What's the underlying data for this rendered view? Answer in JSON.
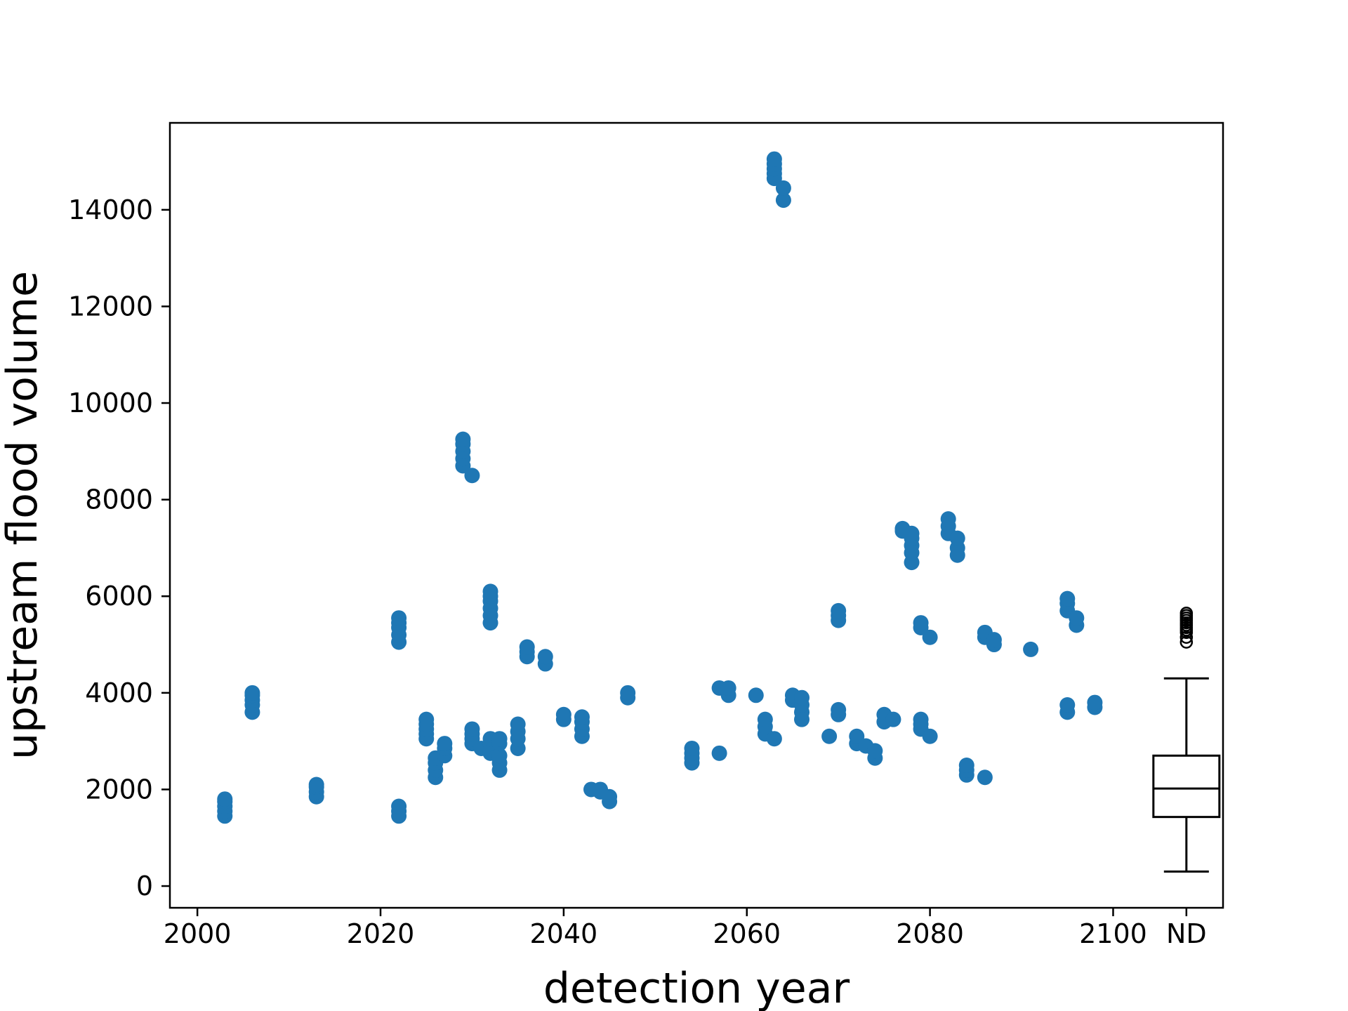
{
  "chart_data": {
    "type": "scatter",
    "title": "",
    "xlabel": "detection year",
    "ylabel": "upstream flood volume",
    "xlim": [
      1997,
      2112
    ],
    "ylim": [
      -450,
      15800
    ],
    "xticks": [
      2000,
      2020,
      2040,
      2060,
      2080,
      2100
    ],
    "xtick_labels": [
      "2000",
      "2020",
      "2040",
      "2060",
      "2080",
      "2100"
    ],
    "extra_xtick": {
      "x": 2108,
      "label": "ND"
    },
    "yticks": [
      0,
      2000,
      4000,
      6000,
      8000,
      10000,
      12000,
      14000
    ],
    "ytick_labels": [
      "0",
      "2000",
      "4000",
      "6000",
      "8000",
      "10000",
      "12000",
      "14000"
    ],
    "grid": false,
    "marker_color": "#1f77b4",
    "series": [
      {
        "points": [
          [
            2003,
            1450
          ],
          [
            2003,
            1550
          ],
          [
            2003,
            1650
          ],
          [
            2003,
            1750
          ],
          [
            2003,
            1800
          ],
          [
            2006,
            3600
          ],
          [
            2006,
            3750
          ],
          [
            2006,
            3850
          ],
          [
            2006,
            3950
          ],
          [
            2006,
            4000
          ],
          [
            2013,
            1850
          ],
          [
            2013,
            1950
          ],
          [
            2013,
            2050
          ],
          [
            2013,
            2100
          ],
          [
            2022,
            1450
          ],
          [
            2022,
            1550
          ],
          [
            2022,
            1650
          ],
          [
            2022,
            5050
          ],
          [
            2022,
            5200
          ],
          [
            2022,
            5350
          ],
          [
            2022,
            5450
          ],
          [
            2022,
            5550
          ],
          [
            2025,
            3050
          ],
          [
            2025,
            3150
          ],
          [
            2025,
            3250
          ],
          [
            2025,
            3350
          ],
          [
            2025,
            3450
          ],
          [
            2026,
            2250
          ],
          [
            2026,
            2400
          ],
          [
            2026,
            2550
          ],
          [
            2026,
            2650
          ],
          [
            2027,
            2700
          ],
          [
            2027,
            2850
          ],
          [
            2027,
            2950
          ],
          [
            2029,
            8700
          ],
          [
            2029,
            8850
          ],
          [
            2029,
            9000
          ],
          [
            2029,
            9150
          ],
          [
            2029,
            9250
          ],
          [
            2030,
            8500
          ],
          [
            2030,
            2950
          ],
          [
            2030,
            3050
          ],
          [
            2030,
            3150
          ],
          [
            2030,
            3250
          ],
          [
            2031,
            2850
          ],
          [
            2032,
            2750
          ],
          [
            2032,
            2950
          ],
          [
            2032,
            3050
          ],
          [
            2032,
            5450
          ],
          [
            2032,
            5600
          ],
          [
            2032,
            5750
          ],
          [
            2032,
            5900
          ],
          [
            2032,
            6000
          ],
          [
            2032,
            6100
          ],
          [
            2033,
            2400
          ],
          [
            2033,
            2550
          ],
          [
            2033,
            2700
          ],
          [
            2033,
            2950
          ],
          [
            2033,
            3050
          ],
          [
            2035,
            2850
          ],
          [
            2035,
            3050
          ],
          [
            2035,
            3200
          ],
          [
            2035,
            3350
          ],
          [
            2036,
            4750
          ],
          [
            2036,
            4850
          ],
          [
            2036,
            4950
          ],
          [
            2038,
            4600
          ],
          [
            2038,
            4750
          ],
          [
            2040,
            3450
          ],
          [
            2040,
            3550
          ],
          [
            2042,
            3100
          ],
          [
            2042,
            3250
          ],
          [
            2042,
            3400
          ],
          [
            2042,
            3500
          ],
          [
            2043,
            2000
          ],
          [
            2044,
            1950
          ],
          [
            2044,
            2000
          ],
          [
            2045,
            1750
          ],
          [
            2045,
            1850
          ],
          [
            2047,
            3900
          ],
          [
            2047,
            4000
          ],
          [
            2054,
            2550
          ],
          [
            2054,
            2650
          ],
          [
            2054,
            2750
          ],
          [
            2054,
            2850
          ],
          [
            2057,
            2750
          ],
          [
            2057,
            4100
          ],
          [
            2058,
            3950
          ],
          [
            2058,
            4100
          ],
          [
            2061,
            3950
          ],
          [
            2062,
            3150
          ],
          [
            2062,
            3300
          ],
          [
            2062,
            3450
          ],
          [
            2063,
            3050
          ],
          [
            2063,
            14650
          ],
          [
            2063,
            14750
          ],
          [
            2063,
            14850
          ],
          [
            2063,
            14950
          ],
          [
            2063,
            15050
          ],
          [
            2064,
            14200
          ],
          [
            2064,
            14450
          ],
          [
            2065,
            3850
          ],
          [
            2065,
            3950
          ],
          [
            2066,
            3450
          ],
          [
            2066,
            3600
          ],
          [
            2066,
            3750
          ],
          [
            2066,
            3900
          ],
          [
            2069,
            3100
          ],
          [
            2070,
            3550
          ],
          [
            2070,
            3650
          ],
          [
            2070,
            5500
          ],
          [
            2070,
            5600
          ],
          [
            2070,
            5700
          ],
          [
            2072,
            2950
          ],
          [
            2072,
            3100
          ],
          [
            2073,
            2900
          ],
          [
            2074,
            2650
          ],
          [
            2074,
            2800
          ],
          [
            2075,
            3400
          ],
          [
            2075,
            3550
          ],
          [
            2076,
            3450
          ],
          [
            2077,
            7350
          ],
          [
            2077,
            7400
          ],
          [
            2078,
            6700
          ],
          [
            2078,
            6900
          ],
          [
            2078,
            7050
          ],
          [
            2078,
            7200
          ],
          [
            2078,
            7300
          ],
          [
            2079,
            3250
          ],
          [
            2079,
            3350
          ],
          [
            2079,
            3450
          ],
          [
            2079,
            5350
          ],
          [
            2079,
            5450
          ],
          [
            2080,
            3100
          ],
          [
            2080,
            5150
          ],
          [
            2082,
            7300
          ],
          [
            2082,
            7450
          ],
          [
            2082,
            7600
          ],
          [
            2083,
            6850
          ],
          [
            2083,
            7000
          ],
          [
            2083,
            7200
          ],
          [
            2084,
            2300
          ],
          [
            2084,
            2400
          ],
          [
            2084,
            2500
          ],
          [
            2086,
            2250
          ],
          [
            2086,
            5150
          ],
          [
            2086,
            5250
          ],
          [
            2087,
            5000
          ],
          [
            2087,
            5100
          ],
          [
            2091,
            4900
          ],
          [
            2095,
            3600
          ],
          [
            2095,
            3750
          ],
          [
            2095,
            5700
          ],
          [
            2095,
            5850
          ],
          [
            2095,
            5950
          ],
          [
            2096,
            5400
          ],
          [
            2096,
            5550
          ],
          [
            2098,
            3700
          ],
          [
            2098,
            3800
          ]
        ]
      }
    ],
    "boxplot": {
      "x": 2108,
      "whisker_low": 300,
      "q1": 1430,
      "median": 2020,
      "q3": 2700,
      "whisker_high": 4300,
      "outliers": [
        5050,
        5150,
        5250,
        5300,
        5350,
        5400,
        5450,
        5500,
        5550,
        5600,
        5650
      ]
    }
  }
}
